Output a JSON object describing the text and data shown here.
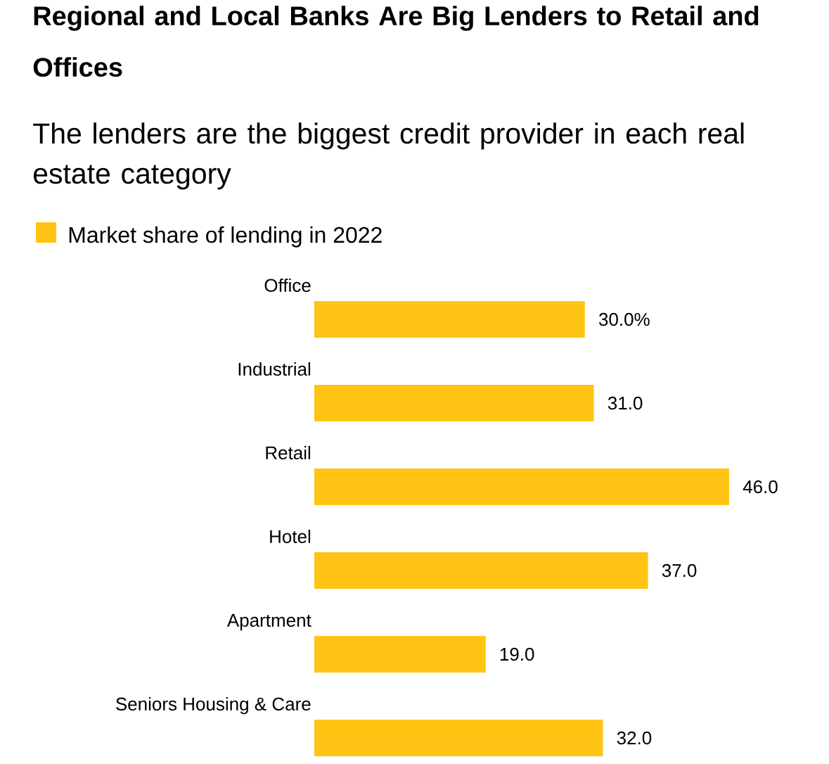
{
  "chart_data": {
    "type": "bar",
    "orientation": "horizontal",
    "title": "Regional and Local Banks Are Big Lenders to Retail and Offices",
    "subtitle": "The lenders are the biggest credit provider in each real estate category",
    "categories": [
      "Office",
      "Industrial",
      "Retail",
      "Hotel",
      "Apartment",
      "Seniors Housing & Care"
    ],
    "series": [
      {
        "name": "Market share of lending in 2022",
        "color": "#ffc414",
        "values": [
          30.0,
          31.0,
          46.0,
          37.0,
          19.0,
          32.0
        ],
        "value_labels": [
          "30.0%",
          "31.0",
          "46.0",
          "37.0",
          "19.0",
          "32.0"
        ]
      }
    ],
    "legend": "top left"
  }
}
